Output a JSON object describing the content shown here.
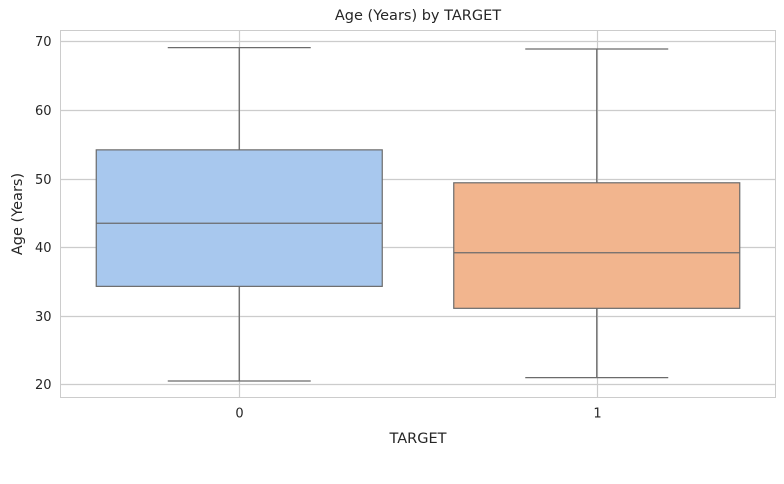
{
  "chart_data": {
    "type": "box",
    "title": "Age (Years) by TARGET",
    "xlabel": "TARGET",
    "ylabel": "Age (Years)",
    "ylim": [
      18.1,
      71.6
    ],
    "yticks": [
      20,
      30,
      40,
      50,
      60,
      70
    ],
    "grid": true,
    "categories": [
      "0",
      "1"
    ],
    "series": [
      {
        "category": "0",
        "whisker_low": 20.5,
        "q1": 34.3,
        "median": 43.5,
        "q3": 54.2,
        "whisker_high": 69.1,
        "color": "#a8c8ee"
      },
      {
        "category": "1",
        "whisker_low": 21.0,
        "q1": 31.1,
        "median": 39.2,
        "q3": 49.4,
        "whisker_high": 68.9,
        "color": "#f2b58e"
      }
    ],
    "colors": {
      "grid": "#cccccc",
      "spine": "#cccccc",
      "box_edge": "#6b6b6b",
      "text": "#262626"
    }
  }
}
